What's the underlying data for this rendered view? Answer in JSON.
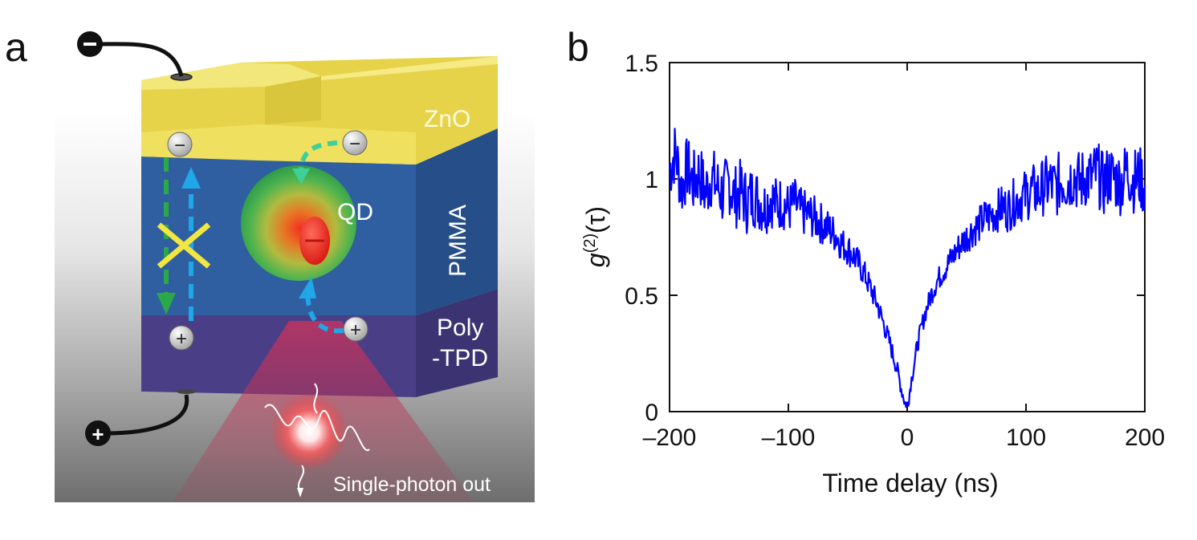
{
  "panel_a": {
    "letter": "a",
    "layers": {
      "zno": "ZnO",
      "pmma": "PMMA",
      "polytpd_line1": "Poly",
      "polytpd_line2": "-TPD"
    },
    "qd_label": "QD",
    "photon_label": "Single-photon out",
    "electron_symbol": "−",
    "hole_symbol": "+",
    "colors": {
      "zno": "#e8d84a",
      "pmma": "#2f5fa0",
      "polytpd": "#4b3f86",
      "qd_shell": "#46b84a",
      "qd_core": "#e8261c",
      "electron_path": "#2aa84a",
      "hole_path": "#1fa7e8",
      "block_mark": "#f2e640"
    }
  },
  "panel_b": {
    "letter": "b",
    "ylabel_main": "g",
    "ylabel_sup": "(2)",
    "ylabel_arg": "(τ)",
    "xlabel": "Time delay (ns)"
  },
  "chart_data": {
    "type": "line",
    "title": "",
    "xlabel": "Time delay (ns)",
    "ylabel": "g(2)(τ)",
    "xlim": [
      -200,
      200
    ],
    "ylim": [
      0,
      1.5
    ],
    "xticks": [
      -200,
      -100,
      0,
      100,
      200
    ],
    "xtick_labels": [
      "–200",
      "–100",
      "0",
      "100",
      "200"
    ],
    "yticks": [
      0,
      0.5,
      1,
      1.5
    ],
    "ytick_labels": [
      "0",
      "0.5",
      "1",
      "1.5"
    ],
    "grid": false,
    "line_color": "#0000ff",
    "series": [
      {
        "x": [
          -200,
          -195,
          -190,
          -185,
          -180,
          -175,
          -170,
          -165,
          -160,
          -155,
          -150,
          -145,
          -140,
          -135,
          -130,
          -125,
          -120,
          -115,
          -110,
          -105,
          -100,
          -95,
          -90,
          -85,
          -80,
          -75,
          -70,
          -65,
          -60,
          -55,
          -50,
          -45,
          -40,
          -35,
          -30,
          -25,
          -20,
          -15,
          -10,
          -7,
          -5,
          -3,
          -2,
          -1,
          0,
          1,
          2,
          3,
          5,
          7,
          10,
          15,
          20,
          25,
          30,
          35,
          40,
          45,
          50,
          55,
          60,
          65,
          70,
          75,
          80,
          85,
          90,
          95,
          100,
          105,
          110,
          115,
          120,
          125,
          130,
          135,
          140,
          145,
          150,
          155,
          160,
          165,
          170,
          175,
          180,
          185,
          190,
          195,
          200
        ],
        "y": [
          1.04,
          1.12,
          0.96,
          1.05,
          0.98,
          1.03,
          0.94,
          1.01,
          0.97,
          0.93,
          0.99,
          0.92,
          0.95,
          0.9,
          0.93,
          0.91,
          0.88,
          0.92,
          0.89,
          0.9,
          0.87,
          0.9,
          0.86,
          0.85,
          0.84,
          0.82,
          0.8,
          0.78,
          0.76,
          0.72,
          0.7,
          0.67,
          0.63,
          0.58,
          0.52,
          0.46,
          0.38,
          0.3,
          0.21,
          0.15,
          0.1,
          0.06,
          0.04,
          0.03,
          0.03,
          0.05,
          0.08,
          0.12,
          0.18,
          0.24,
          0.32,
          0.42,
          0.5,
          0.56,
          0.6,
          0.64,
          0.68,
          0.72,
          0.75,
          0.78,
          0.8,
          0.83,
          0.84,
          0.86,
          0.88,
          0.87,
          0.9,
          0.92,
          0.93,
          0.95,
          0.94,
          0.97,
          0.98,
          0.96,
          1.0,
          0.99,
          1.02,
          0.98,
          1.01,
          1.0,
          1.03,
          0.97,
          1.02,
          1.0,
          0.98,
          1.04,
          0.99,
          1.01,
          0.97
        ]
      }
    ]
  }
}
